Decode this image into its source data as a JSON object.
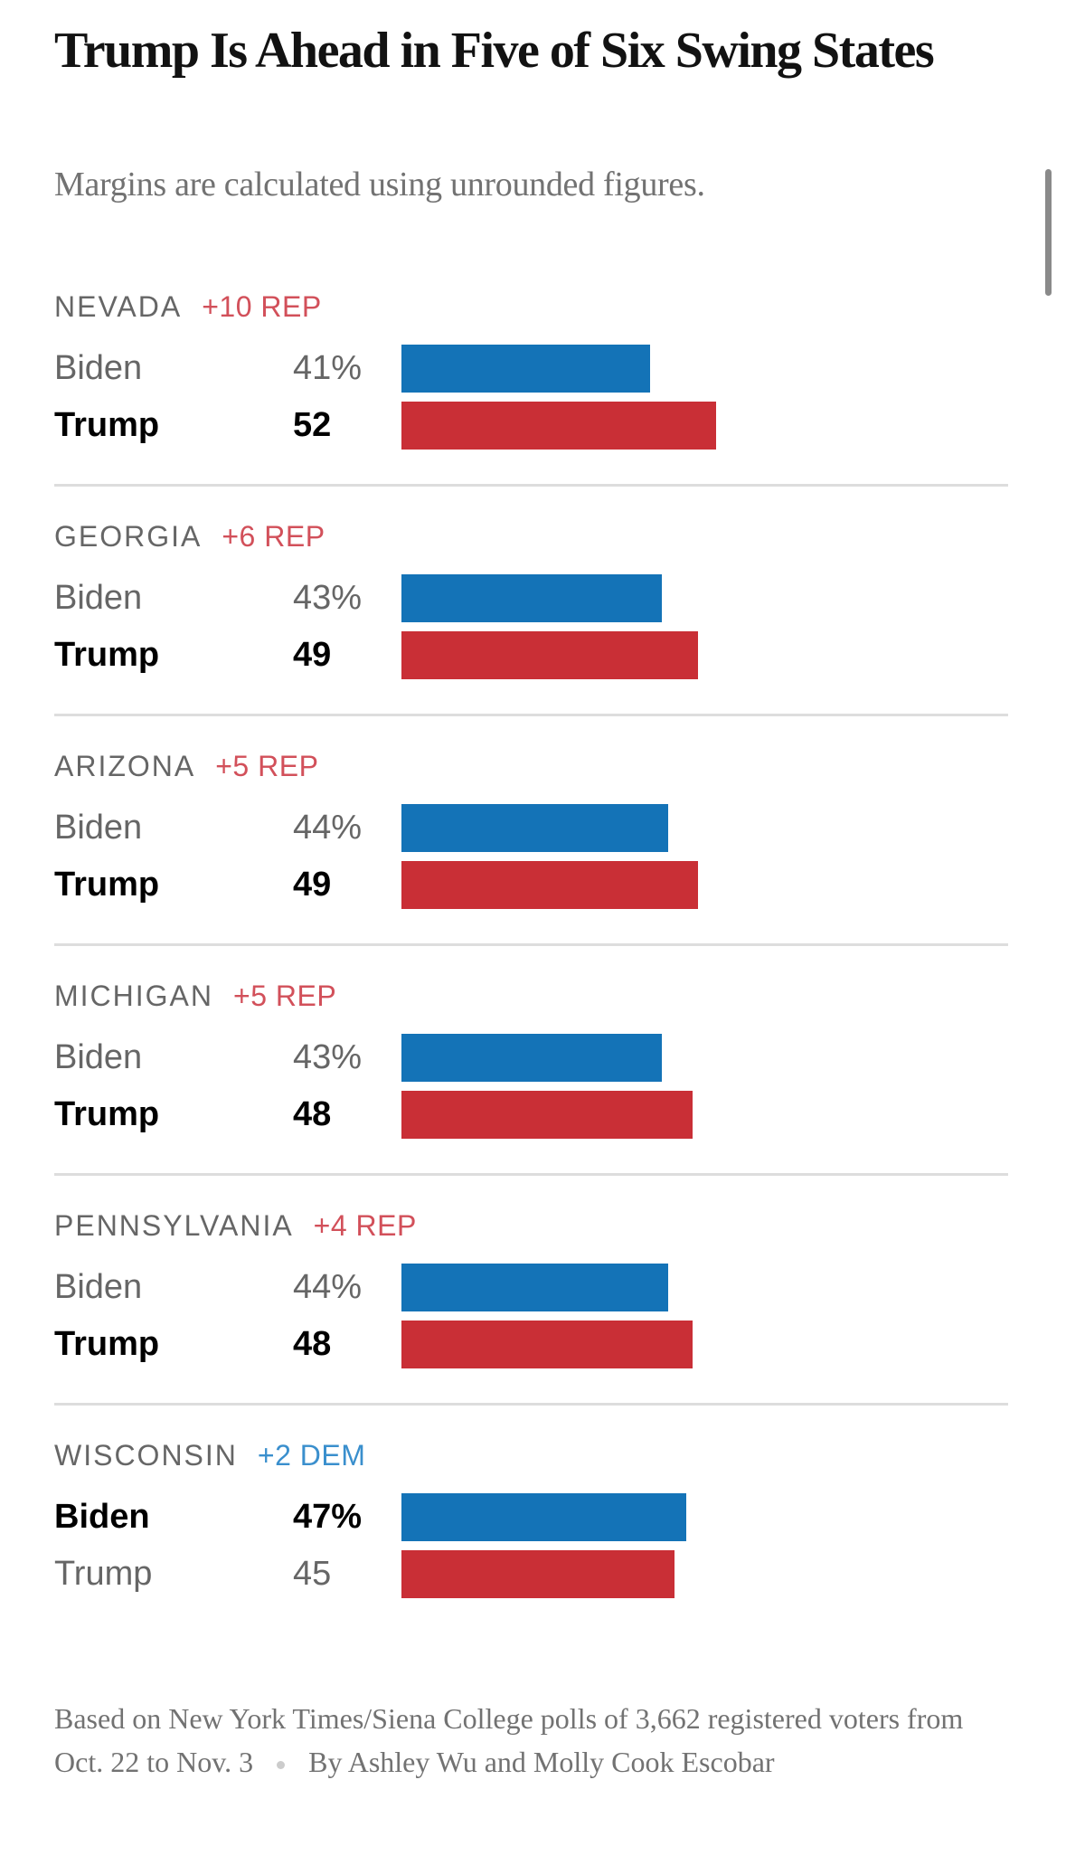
{
  "chart_data": {
    "type": "bar",
    "title": "Trump Is Ahead in Five of Six Swing States",
    "subtitle": "Margins are calculated using unrounded figures.",
    "xlim": [
      0,
      100
    ],
    "colors": {
      "Biden": "#1473b7",
      "Trump": "#c92f36",
      "rep_margin": "#d2505a",
      "dem_margin": "#3a8fcd"
    },
    "states": [
      {
        "name": "NEVADA",
        "margin": "+10 REP",
        "party": "rep",
        "winner": "Trump",
        "rows": [
          {
            "candidate": "Biden",
            "label": "41%",
            "value": 41
          },
          {
            "candidate": "Trump",
            "label": "52",
            "value": 52
          }
        ]
      },
      {
        "name": "GEORGIA",
        "margin": "+6 REP",
        "party": "rep",
        "winner": "Trump",
        "rows": [
          {
            "candidate": "Biden",
            "label": "43%",
            "value": 43
          },
          {
            "candidate": "Trump",
            "label": "49",
            "value": 49
          }
        ]
      },
      {
        "name": "ARIZONA",
        "margin": "+5 REP",
        "party": "rep",
        "winner": "Trump",
        "rows": [
          {
            "candidate": "Biden",
            "label": "44%",
            "value": 44
          },
          {
            "candidate": "Trump",
            "label": "49",
            "value": 49
          }
        ]
      },
      {
        "name": "MICHIGAN",
        "margin": "+5 REP",
        "party": "rep",
        "winner": "Trump",
        "rows": [
          {
            "candidate": "Biden",
            "label": "43%",
            "value": 43
          },
          {
            "candidate": "Trump",
            "label": "48",
            "value": 48
          }
        ]
      },
      {
        "name": "PENNSYLVANIA",
        "margin": "+4 REP",
        "party": "rep",
        "winner": "Trump",
        "rows": [
          {
            "candidate": "Biden",
            "label": "44%",
            "value": 44
          },
          {
            "candidate": "Trump",
            "label": "48",
            "value": 48
          }
        ]
      },
      {
        "name": "WISCONSIN",
        "margin": "+2 DEM",
        "party": "dem",
        "winner": "Biden",
        "rows": [
          {
            "candidate": "Biden",
            "label": "47%",
            "value": 47
          },
          {
            "candidate": "Trump",
            "label": "45",
            "value": 45
          }
        ]
      }
    ],
    "source": "Based on New York Times/Siena College polls of 3,662 registered voters from Oct. 22 to Nov. 3",
    "byline": "By Ashley Wu and Molly Cook Escobar"
  }
}
